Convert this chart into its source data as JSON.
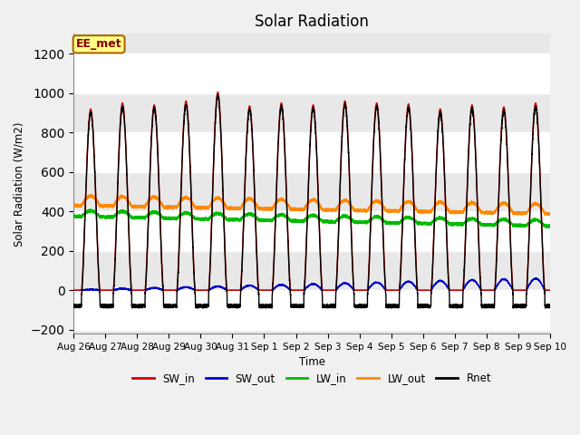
{
  "title": "Solar Radiation",
  "ylabel": "Solar Radiation (W/m2)",
  "xlabel": "Time",
  "ylim": [
    -220,
    1300
  ],
  "yticks": [
    -200,
    0,
    200,
    400,
    600,
    800,
    1000,
    1200
  ],
  "annotation_text": "EE_met",
  "plot_bg_color": "#e8e8e8",
  "fig_bg_color": "#f0f0f0",
  "stripe_color": "#d0d0d0",
  "line_colors": {
    "SW_in": "#cc0000",
    "SW_out": "#0000cc",
    "LW_in": "#00bb00",
    "LW_out": "#ff8800",
    "Rnet": "#000000"
  },
  "xtick_labels": [
    "Aug 26",
    "Aug 27",
    "Aug 28",
    "Aug 29",
    "Aug 30",
    "Aug 31",
    "Sep 1",
    "Sep 2",
    "Sep 3",
    "Sep 4",
    "Sep 5",
    "Sep 6",
    "Sep 7",
    "Sep 8",
    "Sep 9",
    "Sep 10"
  ],
  "n_days": 15,
  "pts_per_day": 288
}
